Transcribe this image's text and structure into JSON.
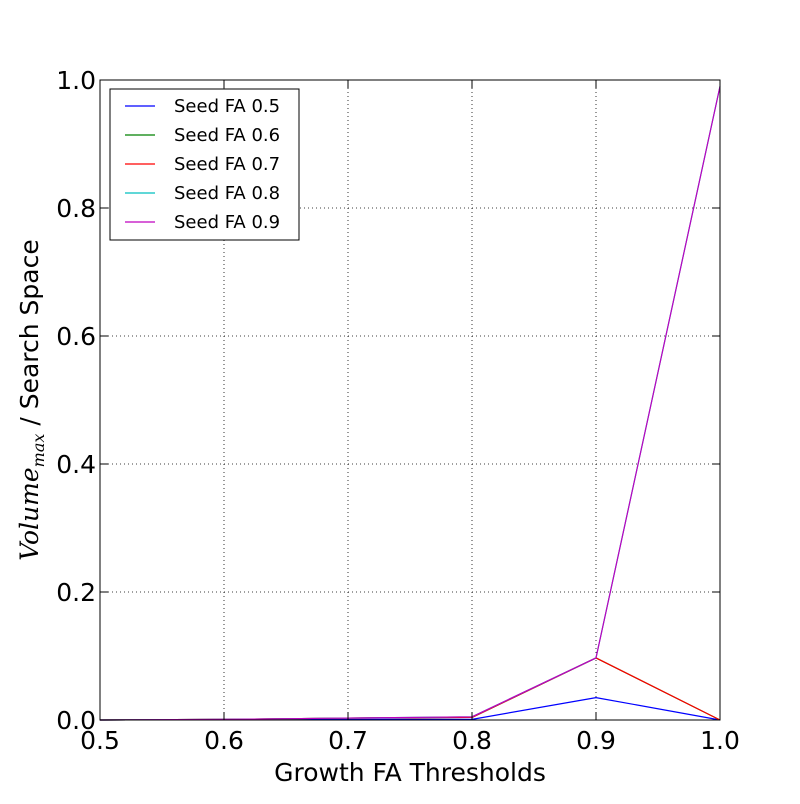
{
  "chart_data": {
    "type": "line",
    "title": "",
    "xlabel": "Growth FA Thresholds",
    "ylabel": {
      "main": "Volume",
      "subscript": "max",
      "rest": " / Search Space"
    },
    "xlim": [
      0.5,
      1.0
    ],
    "ylim": [
      0.0,
      1.0
    ],
    "xticks": [
      "0.5",
      "0.6",
      "0.7",
      "0.8",
      "0.9",
      "1.0"
    ],
    "yticks": [
      "0.0",
      "0.2",
      "0.4",
      "0.6",
      "0.8",
      "1.0"
    ],
    "grid": true,
    "legend_position": "top-left",
    "x": [
      0.5,
      0.6,
      0.7,
      0.8,
      0.9,
      1.0
    ],
    "series": [
      {
        "name": "Seed FA 0.5",
        "color": "#0000ff",
        "values": [
          0.0,
          0.0005,
          0.001,
          0.001,
          0.035,
          0.0
        ]
      },
      {
        "name": "Seed FA 0.6",
        "color": "#008000",
        "values": [
          0.0,
          0.001,
          0.003,
          0.004,
          0.097,
          0.0
        ]
      },
      {
        "name": "Seed FA 0.7",
        "color": "#ff0000",
        "values": [
          0.0,
          0.001,
          0.003,
          0.004,
          0.097,
          0.0
        ]
      },
      {
        "name": "Seed FA 0.8",
        "color": "#00bfbf",
        "values": [
          0.0,
          0.001,
          0.003,
          0.005,
          0.097,
          0.99
        ]
      },
      {
        "name": "Seed FA 0.9",
        "color": "#bf00bf",
        "values": [
          0.0,
          0.001,
          0.003,
          0.005,
          0.097,
          0.99
        ]
      }
    ]
  }
}
